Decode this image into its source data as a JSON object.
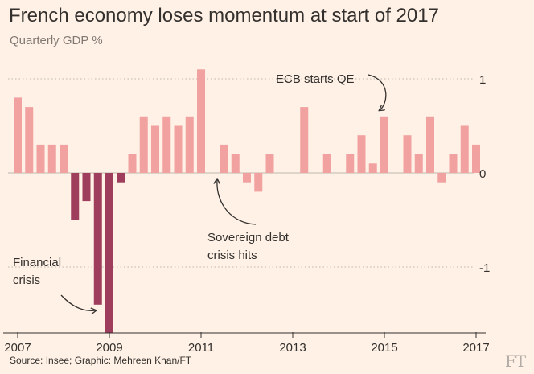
{
  "title": "French economy loses momentum at start of 2017",
  "subtitle": "Quarterly GDP %",
  "source": "Source: Insee; Graphic: Mehreen Khan/FT",
  "logo": "FT",
  "colors": {
    "background": "#fff1e5",
    "positive_bar": "#f2a1a1",
    "crisis_bar": "#9e3d5c",
    "grid": "#bdb6ae",
    "text": "#33302e"
  },
  "chart_data": {
    "type": "bar",
    "title": "French economy loses momentum at start of 2017",
    "subtitle": "Quarterly GDP %",
    "xlabel": "",
    "ylabel": "",
    "ylim": [
      -1.7,
      1.1
    ],
    "yticks": [
      1,
      0,
      -1
    ],
    "yticklabels": [
      "1",
      "0",
      "-1"
    ],
    "xticklabels": [
      "2007",
      "2009",
      "2011",
      "2013",
      "2015",
      "2017"
    ],
    "grid": "horizontal dotted",
    "categories": [
      "2007 Q1",
      "2007 Q2",
      "2007 Q3",
      "2007 Q4",
      "2008 Q1",
      "2008 Q2",
      "2008 Q3",
      "2008 Q4",
      "2009 Q1",
      "2009 Q2",
      "2009 Q3",
      "2009 Q4",
      "2010 Q1",
      "2010 Q2",
      "2010 Q3",
      "2010 Q4",
      "2011 Q1",
      "2011 Q2",
      "2011 Q3",
      "2011 Q4",
      "2012 Q1",
      "2012 Q2",
      "2012 Q3",
      "2012 Q4",
      "2013 Q1",
      "2013 Q2",
      "2013 Q3",
      "2013 Q4",
      "2014 Q1",
      "2014 Q2",
      "2014 Q3",
      "2014 Q4",
      "2015 Q1",
      "2015 Q2",
      "2015 Q3",
      "2015 Q4",
      "2016 Q1",
      "2016 Q2",
      "2016 Q3",
      "2016 Q4",
      "2017 Q1"
    ],
    "values": [
      0.8,
      0.7,
      0.3,
      0.3,
      0.3,
      -0.5,
      -0.3,
      -1.4,
      -1.7,
      -0.1,
      0.2,
      0.6,
      0.5,
      0.6,
      0.5,
      0.6,
      1.1,
      0.0,
      0.3,
      0.2,
      -0.1,
      -0.2,
      0.2,
      0.0,
      0.0,
      0.7,
      0.0,
      0.2,
      0.0,
      0.2,
      0.4,
      0.1,
      0.6,
      0.0,
      0.4,
      0.2,
      0.6,
      -0.1,
      0.2,
      0.5,
      0.3
    ],
    "crisis_range": [
      "2008 Q2",
      "2009 Q2"
    ],
    "annotations": [
      {
        "text": [
          "ECB starts QE"
        ],
        "at": "2015 Q1"
      },
      {
        "text": [
          "Sovereign debt",
          "crisis hits"
        ],
        "at": "2011 Q2"
      },
      {
        "text": [
          "Financial",
          "crisis"
        ],
        "at": "2009 Q1"
      }
    ]
  }
}
